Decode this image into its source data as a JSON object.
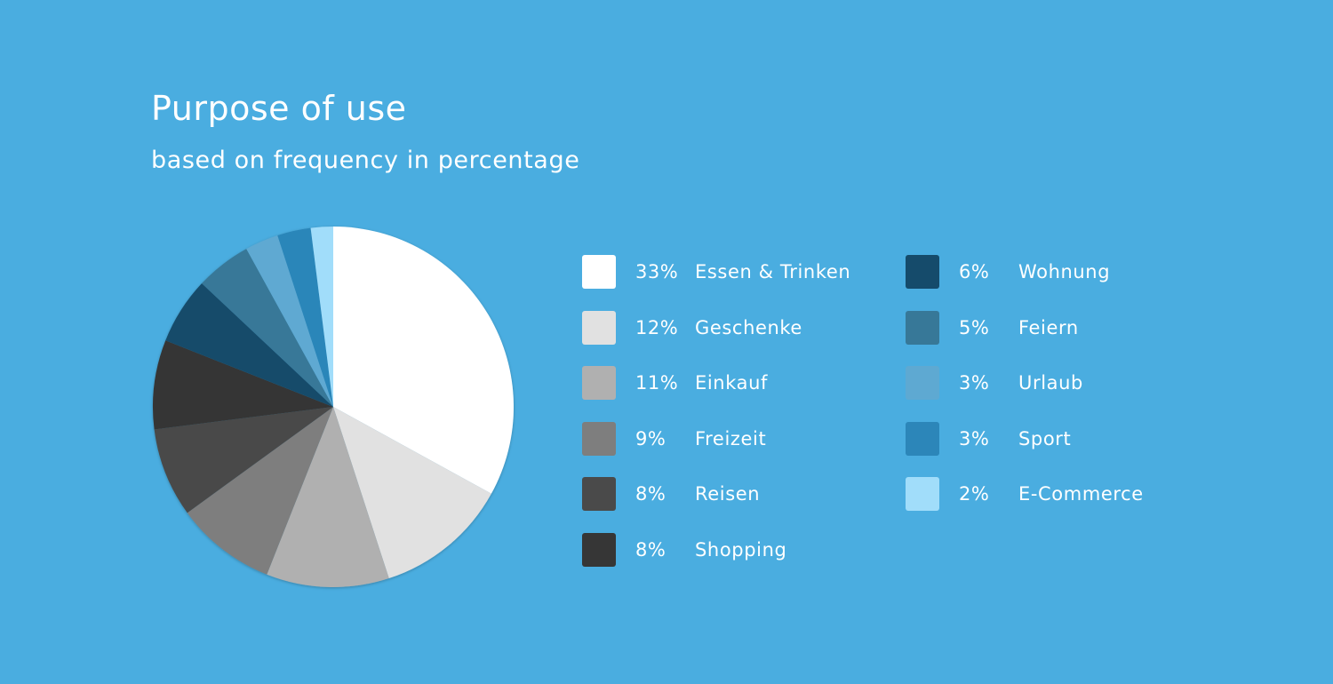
{
  "chart_data": {
    "type": "pie",
    "title": "Purpose of use",
    "subtitle": "based on frequency in percentage",
    "value_unit": "%",
    "legend_position": "right",
    "slices": [
      {
        "label": "Essen & Trinken",
        "value": 33,
        "display": "33%",
        "color": "#ffffff"
      },
      {
        "label": "Geschenke",
        "value": 12,
        "display": "12%",
        "color": "#e1e1e1"
      },
      {
        "label": "Einkauf",
        "value": 11,
        "display": "11%",
        "color": "#b0b0b0"
      },
      {
        "label": "Freizeit",
        "value": 9,
        "display": "9%",
        "color": "#7e7e7e"
      },
      {
        "label": "Reisen",
        "value": 8,
        "display": "8%",
        "color": "#4a4a4a"
      },
      {
        "label": "Shopping",
        "value": 8,
        "display": "8%",
        "color": "#363636"
      },
      {
        "label": "Wohnung",
        "value": 6,
        "display": "6%",
        "color": "#154b6b"
      },
      {
        "label": "Feiern",
        "value": 5,
        "display": "5%",
        "color": "#377898"
      },
      {
        "label": "Urlaub",
        "value": 3,
        "display": "3%",
        "color": "#5ea9d2"
      },
      {
        "label": "Sport",
        "value": 3,
        "display": "3%",
        "color": "#2c86b9"
      },
      {
        "label": "E-Commerce",
        "value": 2,
        "display": "2%",
        "color": "#a1ddfa"
      }
    ]
  },
  "colors": {
    "background": "#4aade0",
    "text": "#ffffff"
  }
}
